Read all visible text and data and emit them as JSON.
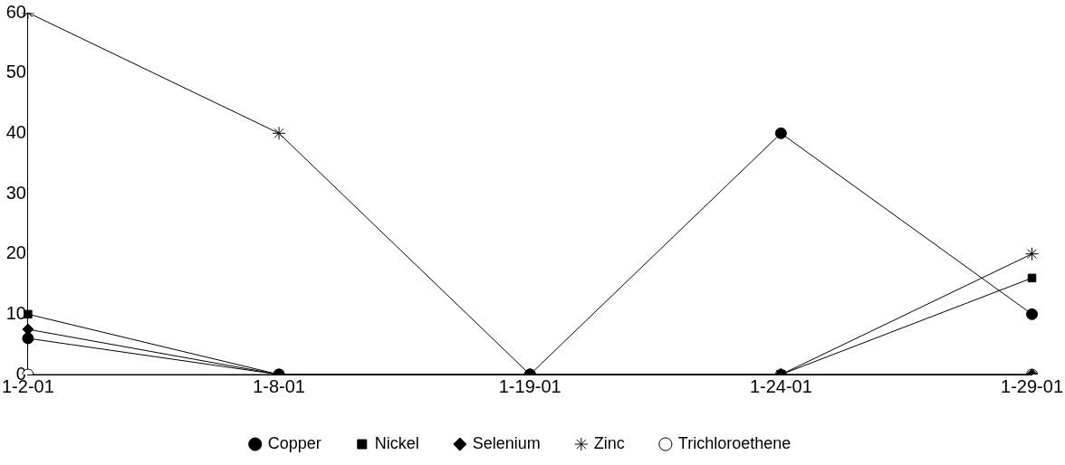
{
  "chart_data": {
    "type": "line",
    "categories": [
      "1-2-01",
      "1-8-01",
      "1-19-01",
      "1-24-01",
      "1-29-01"
    ],
    "ylim": [
      0,
      60
    ],
    "yticks": [
      0,
      10,
      20,
      30,
      40,
      50,
      60
    ],
    "grid": false,
    "legend": "bottom",
    "series": [
      {
        "name": "Copper",
        "color": "#000000",
        "marker": "circle",
        "values": [
          6,
          0,
          0,
          40,
          10
        ]
      },
      {
        "name": "Nickel",
        "color": "#000000",
        "marker": "square",
        "values": [
          10,
          0,
          0,
          0,
          16
        ]
      },
      {
        "name": "Selenium",
        "color": "#000000",
        "marker": "diamond",
        "values": [
          7.5,
          0,
          0,
          0,
          0
        ]
      },
      {
        "name": "Zinc",
        "color": "#000000",
        "marker": "cross",
        "values": [
          60,
          40,
          0,
          0,
          20
        ]
      },
      {
        "name": "Trichloroethene",
        "color": "#000000",
        "marker": "circle-open",
        "values": [
          0,
          0,
          0,
          0,
          0
        ]
      }
    ]
  }
}
